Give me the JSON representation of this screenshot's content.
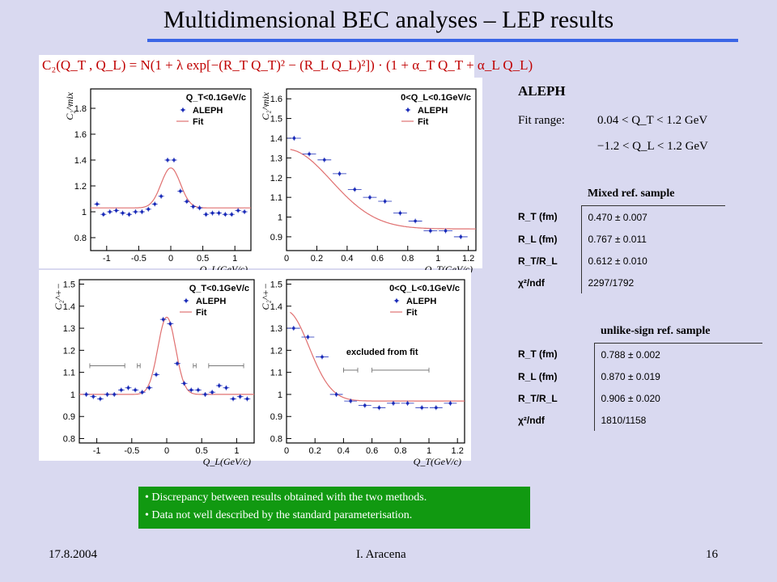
{
  "title": "Multidimensional BEC analyses – LEP results",
  "formula": "C₂(Q_T , Q_L) = N(1 + λ exp[−(R_T Q_T)² − (R_L Q_L)²]) · (1 + α_T Q_T + α_L Q_L)",
  "aleph": {
    "header": "ALEPH",
    "fit_range_label": "Fit range:",
    "range_qt": "0.04 < Q_T < 1.2 GeV",
    "range_ql": "−1.2 < Q_L < 1.2 GeV"
  },
  "tables": [
    {
      "header": "Mixed ref. sample",
      "rows": [
        {
          "label": "R_T (fm)",
          "value": "0.470 ± 0.007"
        },
        {
          "label": "R_L (fm)",
          "value": "0.767 ± 0.011"
        },
        {
          "label": "R_T/R_L",
          "value": "0.612 ± 0.010"
        },
        {
          "label": "χ²/ndf",
          "value": "2297/1792"
        }
      ]
    },
    {
      "header": "unlike-sign ref. sample",
      "rows": [
        {
          "label": "R_T (fm)",
          "value": "0.788 ± 0.002"
        },
        {
          "label": "R_L (fm)",
          "value": "0.870 ± 0.019"
        },
        {
          "label": "R_T/R_L",
          "value": "0.906 ± 0.020"
        },
        {
          "label": "χ²/ndf",
          "value": "1810/1158"
        }
      ]
    }
  ],
  "bullets": [
    "Discrepancy between results obtained with the two methods.",
    "Data not well described by the standard parameterisation."
  ],
  "footer": {
    "date": "17.8.2004",
    "author": "I. Aracena",
    "page": "16"
  },
  "colors": {
    "title_rule": "#3b66e6",
    "fit": "#e07070",
    "points": "#1a2bb8",
    "bullet_box": "#119911",
    "formula": "#c00000"
  },
  "chart_data": [
    {
      "type": "scatter",
      "ylabel": "C₂^mix",
      "xlabel": "Q_L(GeV/c)",
      "annotation": "Q_T<0.1GeV/c",
      "legend": [
        "ALEPH",
        "Fit"
      ],
      "legend_position": "top-right",
      "xlim": [
        -1.25,
        1.25
      ],
      "ylim": [
        0.7,
        1.95
      ],
      "xticks": [
        -1,
        -0.5,
        0,
        0.5,
        1
      ],
      "xtick_labels": [
        "-1",
        "-0.5",
        "0",
        "0.5",
        "1"
      ],
      "yticks": [
        0.8,
        1,
        1.2,
        1.4,
        1.6,
        1.8
      ],
      "ytick_labels": [
        "0.8",
        "1",
        "1.2",
        "1.4",
        "1.6",
        "1.8"
      ],
      "points": {
        "x": [
          -1.15,
          -1.05,
          -0.95,
          -0.85,
          -0.75,
          -0.65,
          -0.55,
          -0.45,
          -0.35,
          -0.25,
          -0.15,
          -0.05,
          0.05,
          0.15,
          0.25,
          0.35,
          0.45,
          0.55,
          0.65,
          0.75,
          0.85,
          0.95,
          1.05,
          1.15
        ],
        "y": [
          1.06,
          0.98,
          1.0,
          1.01,
          0.99,
          0.98,
          1.0,
          1.0,
          1.02,
          1.06,
          1.12,
          1.4,
          1.4,
          1.16,
          1.08,
          1.04,
          1.03,
          0.98,
          0.99,
          0.99,
          0.98,
          0.98,
          1.01,
          1.0
        ]
      },
      "fit": {
        "form": "N(1+lambda*exp(-(k x)^2))",
        "N": 1.03,
        "lambda": 0.3,
        "k": 4.7
      }
    },
    {
      "type": "scatter",
      "ylabel": "C₂^mix",
      "xlabel": "Q_T(GeV/c)",
      "annotation": "0<Q_L<0.1GeV/c",
      "legend": [
        "ALEPH",
        "Fit"
      ],
      "legend_position": "top-right",
      "xlim": [
        0,
        1.25
      ],
      "ylim": [
        0.83,
        1.65
      ],
      "xticks": [
        0,
        0.2,
        0.4,
        0.6,
        0.8,
        1,
        1.2
      ],
      "xtick_labels": [
        "0",
        "0.2",
        "0.4",
        "0.6",
        "0.8",
        "1",
        "1.2"
      ],
      "yticks": [
        0.9,
        1,
        1.1,
        1.2,
        1.3,
        1.4,
        1.5,
        1.6
      ],
      "ytick_labels": [
        "0.9",
        "1",
        "1.1",
        "1.2",
        "1.3",
        "1.4",
        "1.5",
        "1.6"
      ],
      "points": {
        "x": [
          0.05,
          0.15,
          0.25,
          0.35,
          0.45,
          0.55,
          0.65,
          0.75,
          0.85,
          0.95,
          1.05,
          1.15
        ],
        "y": [
          1.4,
          1.32,
          1.29,
          1.22,
          1.14,
          1.1,
          1.08,
          1.02,
          0.98,
          0.93,
          0.93,
          0.9
        ]
      },
      "fit": {
        "form": "N(1+lambda*exp(-(k x)^2))",
        "N": 0.94,
        "lambda": 0.43,
        "k": 2.4
      }
    },
    {
      "type": "scatter",
      "ylabel": "C₂^+−",
      "xlabel": "Q_L(GeV/c)",
      "annotation": "Q_T<0.1GeV/c",
      "legend": [
        "ALEPH",
        "Fit"
      ],
      "legend_position": "top-right",
      "xlim": [
        -1.25,
        1.25
      ],
      "ylim": [
        0.78,
        1.52
      ],
      "xticks": [
        -1,
        -0.5,
        0,
        0.5,
        1
      ],
      "xtick_labels": [
        "-1",
        "-0.5",
        "0",
        "0.5",
        "1"
      ],
      "yticks": [
        0.8,
        0.9,
        1,
        1.1,
        1.2,
        1.3,
        1.4,
        1.5
      ],
      "ytick_labels": [
        "0.8",
        "0.9",
        "1",
        "1.1",
        "1.2",
        "1.3",
        "1.4",
        "1.5"
      ],
      "points": {
        "x": [
          -1.15,
          -1.05,
          -0.95,
          -0.85,
          -0.75,
          -0.65,
          -0.55,
          -0.45,
          -0.35,
          -0.25,
          -0.15,
          -0.05,
          0.05,
          0.15,
          0.25,
          0.35,
          0.45,
          0.55,
          0.65,
          0.75,
          0.85,
          0.95,
          1.05,
          1.15
        ],
        "y": [
          1.0,
          0.99,
          0.98,
          1.0,
          1.0,
          1.02,
          1.03,
          1.02,
          1.01,
          1.03,
          1.09,
          1.34,
          1.32,
          1.14,
          1.05,
          1.02,
          1.02,
          1.0,
          1.01,
          1.04,
          1.03,
          0.98,
          0.99,
          0.98
        ]
      },
      "excluded_ranges": [
        [
          -1.1,
          -0.6
        ],
        [
          -0.42,
          -0.38
        ],
        [
          0.38,
          0.42
        ],
        [
          0.6,
          1.1
        ]
      ],
      "fit": {
        "form": "N(1+lambda*exp(-(k x)^2))",
        "N": 1.0,
        "lambda": 0.35,
        "k": 5.6
      }
    },
    {
      "type": "scatter",
      "ylabel": "C₂^+−",
      "xlabel": "Q_T(GeV/c)",
      "annotation": "0<Q_L<0.1GeV/c",
      "note": "excluded from fit",
      "legend": [
        "ALEPH",
        "Fit"
      ],
      "legend_position": "top-right",
      "xlim": [
        0,
        1.25
      ],
      "ylim": [
        0.78,
        1.52
      ],
      "xticks": [
        0,
        0.2,
        0.4,
        0.6,
        0.8,
        1,
        1.2
      ],
      "xtick_labels": [
        "0",
        "0.2",
        "0.4",
        "0.6",
        "0.8",
        "1",
        "1.2"
      ],
      "yticks": [
        0.8,
        0.9,
        1,
        1.1,
        1.2,
        1.3,
        1.4,
        1.5
      ],
      "ytick_labels": [
        "0.8",
        "0.9",
        "1",
        "1.1",
        "1.2",
        "1.3",
        "1.4",
        "1.5"
      ],
      "points": {
        "x": [
          0.05,
          0.15,
          0.25,
          0.35,
          0.45,
          0.55,
          0.65,
          0.75,
          0.85,
          0.95,
          1.05,
          1.15
        ],
        "y": [
          1.3,
          1.26,
          1.17,
          1.0,
          0.97,
          0.95,
          0.94,
          0.96,
          0.96,
          0.94,
          0.94,
          0.96
        ]
      },
      "excluded_ranges": [
        [
          0.4,
          0.5
        ],
        [
          0.6,
          1.0
        ]
      ],
      "fit": {
        "form": "N(1+lambda*exp(-(k x)^2))",
        "N": 0.97,
        "lambda": 0.42,
        "k": 4.5
      }
    }
  ]
}
